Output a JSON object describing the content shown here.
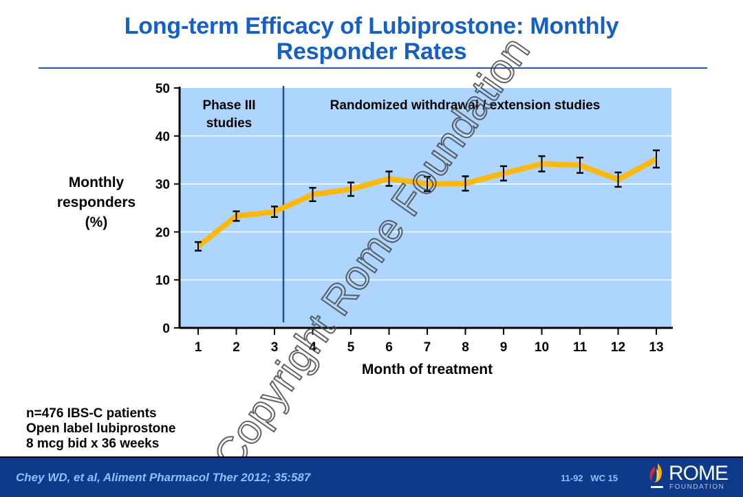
{
  "slide": {
    "title_line1": "Long-term Efficacy of Lubiprostone: Monthly",
    "title_line2": "Responder Rates",
    "notes": [
      "n=476 IBS-C patients",
      "Open label lubiprostone",
      "8 mcg bid x 36 weeks"
    ],
    "citation": "Chey WD, et al, Aliment Pharmacol Ther 2012; 35:587",
    "slide_code": "11-92   WC 15",
    "logo": {
      "name": "ROME",
      "sub": "FOUNDATION"
    },
    "watermark": "Copyright Rome Foundation"
  },
  "colors": {
    "title": "#1560c4",
    "plot_bg": "#add5fd",
    "line": "#fbb90f",
    "divider": "#1a4fa0",
    "footer_bg": "#0d3a8a",
    "footer_text": "#8fc1ff"
  },
  "chart_data": {
    "type": "line",
    "title": "",
    "xlabel": "Month of treatment",
    "ylabel_lines": [
      "Monthly",
      "responders",
      "(%)"
    ],
    "x": [
      1,
      2,
      3,
      4,
      5,
      6,
      7,
      8,
      9,
      10,
      11,
      12,
      13
    ],
    "categories": [
      "1",
      "2",
      "3",
      "4",
      "5",
      "6",
      "7",
      "8",
      "9",
      "10",
      "11",
      "12",
      "13"
    ],
    "series": [
      {
        "name": "Monthly responders",
        "values": [
          17.0,
          23.3,
          24.2,
          27.8,
          28.9,
          31.1,
          30.0,
          30.1,
          32.2,
          34.2,
          33.9,
          30.9,
          35.2
        ],
        "error": [
          0.9,
          1.0,
          1.1,
          1.4,
          1.4,
          1.5,
          1.5,
          1.5,
          1.5,
          1.6,
          1.6,
          1.5,
          1.8
        ]
      }
    ],
    "ylim": [
      0,
      50
    ],
    "yticks": [
      "0",
      "10",
      "20",
      "30",
      "40",
      "50"
    ],
    "grid": true,
    "phase_divider_x": 3,
    "annotations": [
      {
        "text_lines": [
          "Phase III",
          "studies"
        ],
        "region": "months 1-3"
      },
      {
        "text_lines": [
          "Randomized withdrawal / extension studies"
        ],
        "region": "months 3-13"
      }
    ],
    "legend": "none"
  }
}
